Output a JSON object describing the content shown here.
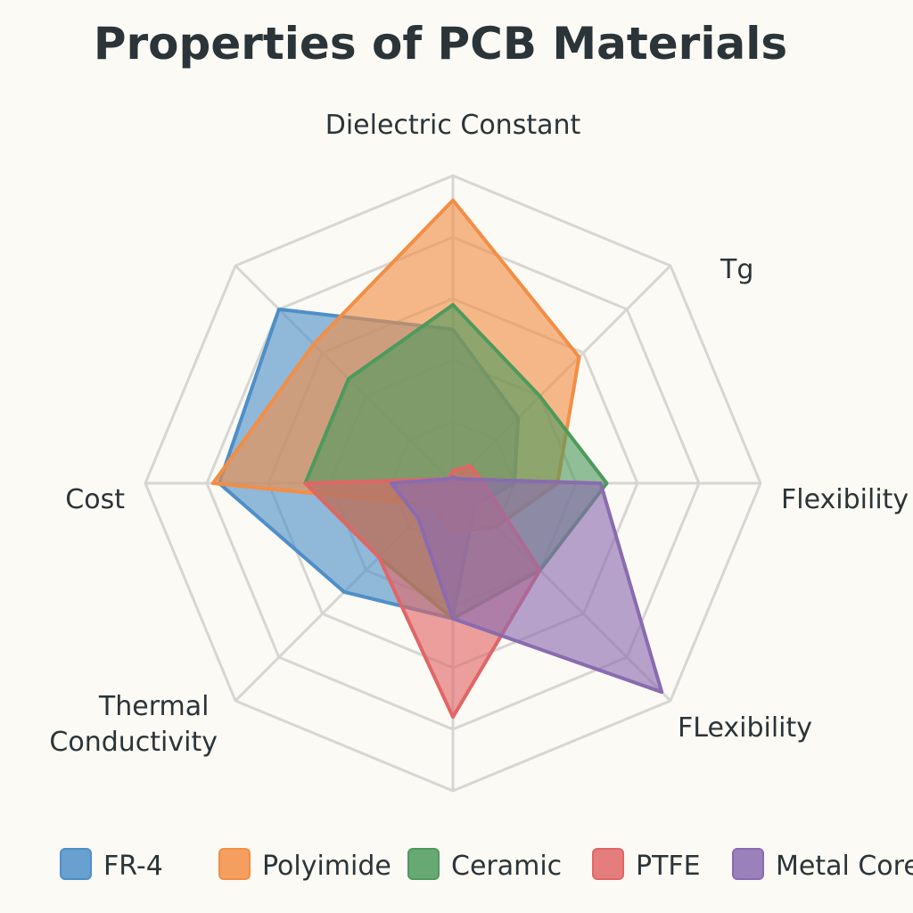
{
  "chart_data": {
    "type": "radar",
    "title": "Properties of PCB Materials",
    "axes": [
      "Dielectric Constant",
      "Tg",
      "Flexibility",
      "FLexibility",
      "",
      "Thermal Conductivity",
      "Cost",
      ""
    ],
    "range": [
      0,
      5
    ],
    "grid_levels": 5,
    "grid": true,
    "legend_position": "bottom",
    "series": [
      {
        "name": "FR-4",
        "color": "#4e8fc8",
        "values": [
          2.5,
          1.5,
          1.0,
          0.5,
          2.2,
          2.5,
          3.8,
          4.0
        ]
      },
      {
        "name": "Polyimide",
        "color": "#f28e45",
        "values": [
          4.6,
          2.9,
          1.7,
          1.0,
          0.8,
          0.5,
          3.9,
          3.2
        ]
      },
      {
        "name": "Ceramic",
        "color": "#4d9a5c",
        "values": [
          2.9,
          2.0,
          2.5,
          2.0,
          2.2,
          1.7,
          2.4,
          2.4
        ]
      },
      {
        "name": "PTFE",
        "color": "#e06666",
        "values": [
          0.2,
          0.4,
          0.5,
          2.0,
          3.8,
          1.7,
          2.4,
          0.1
        ]
      },
      {
        "name": "Metal Core",
        "color": "#8a6bb0",
        "values": [
          0.1,
          0.1,
          2.4,
          4.8,
          2.2,
          0.8,
          1.0,
          0.1
        ]
      }
    ]
  }
}
